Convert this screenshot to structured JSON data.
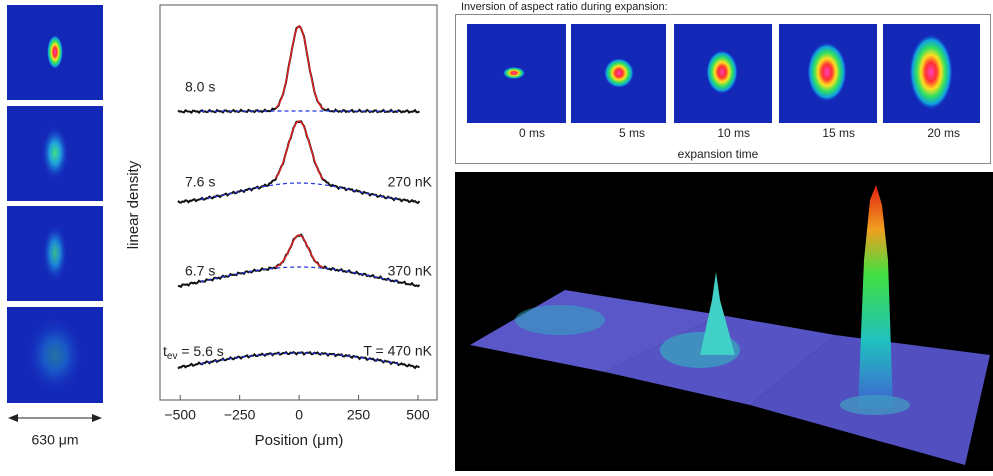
{
  "scale_label": "630 μm",
  "chart_data": {
    "type": "profiles",
    "ylabel": "linear density",
    "xlabel": "Position (μm)",
    "xlim": [
      -585,
      580
    ],
    "xticks": [
      {
        "value": -500,
        "label": "−500"
      },
      {
        "value": -250,
        "label": "−250"
      },
      0,
      250,
      500
    ],
    "time_labels": [
      "8.0 s",
      "7.6 s",
      "6.7 s"
    ],
    "first_time_label": {
      "symbol": "t",
      "subscript": "ev",
      "text": " = 5.6 s"
    },
    "temperature_labels": [
      "270 nK",
      "370 nK",
      "T = 470 nK"
    ]
  },
  "expansion": {
    "title": "Inversion of aspect ratio during expansion:",
    "times": [
      "0 ms",
      "5 ms",
      "10 ms",
      "15 ms",
      "20 ms"
    ],
    "axis_label": "expansion time"
  }
}
